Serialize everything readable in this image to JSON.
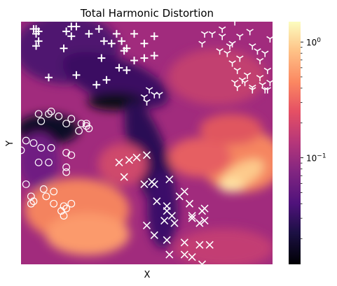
{
  "chart_data": {
    "type": "heatmap",
    "title": "Total Harmonic Distortion",
    "xlabel": "X",
    "ylabel": "Y",
    "colormap": "magma",
    "colorbar": {
      "scale": "log",
      "range": [
        0.012,
        1.5
      ],
      "major_ticks": [
        {
          "value": 1,
          "label": "10^0"
        },
        {
          "value": 0.1,
          "label": "10^-1"
        }
      ],
      "minor_ticks": [
        0.02,
        0.03,
        0.04,
        0.05,
        0.06,
        0.07,
        0.08,
        0.09,
        0.2,
        0.3,
        0.4,
        0.5,
        0.6,
        0.7,
        0.8,
        0.9
      ]
    },
    "grid": false,
    "legend": "none",
    "scatter_series": [
      {
        "marker": "plus",
        "color": "#ffffff",
        "points": [
          [
            0.06,
            0.03
          ],
          [
            0.07,
            0.04
          ],
          [
            0.06,
            0.1
          ],
          [
            0.18,
            0.04
          ],
          [
            0.2,
            0.02
          ],
          [
            0.27,
            0.05
          ],
          [
            0.31,
            0.03
          ],
          [
            0.33,
            0.08
          ],
          [
            0.36,
            0.09
          ],
          [
            0.38,
            0.05
          ],
          [
            0.4,
            0.08
          ],
          [
            0.41,
            0.12
          ],
          [
            0.42,
            0.11
          ],
          [
            0.45,
            0.05
          ],
          [
            0.49,
            0.09
          ],
          [
            0.49,
            0.15
          ],
          [
            0.53,
            0.14
          ],
          [
            0.17,
            0.11
          ],
          [
            0.2,
            0.06
          ],
          [
            0.22,
            0.02
          ],
          [
            0.32,
            0.15
          ],
          [
            0.11,
            0.23
          ],
          [
            0.22,
            0.22
          ],
          [
            0.3,
            0.26
          ],
          [
            0.34,
            0.24
          ],
          [
            0.39,
            0.19
          ],
          [
            0.53,
            0.06
          ],
          [
            0.06,
            0.05
          ],
          [
            0.07,
            0.08
          ],
          [
            0.05,
            0.03
          ],
          [
            0.42,
            0.2
          ],
          [
            0.45,
            0.16
          ]
        ]
      },
      {
        "marker": "tri_down",
        "color": "#ffffff",
        "points": [
          [
            0.76,
            0.05
          ],
          [
            0.8,
            0.06
          ],
          [
            0.79,
            0.12
          ],
          [
            0.82,
            0.13
          ],
          [
            0.84,
            0.09
          ],
          [
            0.87,
            0.06
          ],
          [
            0.91,
            0.04
          ],
          [
            0.92,
            0.1
          ],
          [
            0.87,
            0.15
          ],
          [
            0.86,
            0.2
          ],
          [
            0.85,
            0.25
          ],
          [
            0.89,
            0.25
          ],
          [
            0.94,
            0.12
          ],
          [
            0.97,
            0.13
          ],
          [
            0.99,
            0.07
          ],
          [
            0.98,
            0.2
          ],
          [
            0.96,
            0.26
          ],
          [
            0.92,
            0.28
          ],
          [
            0.97,
            0.28
          ],
          [
            0.86,
            0.27
          ],
          [
            0.88,
            0.24
          ],
          [
            0.95,
            0.16
          ],
          [
            0.8,
            0.03
          ],
          [
            0.85,
            0.0
          ],
          [
            0.83,
            0.1
          ],
          [
            0.9,
            0.22
          ],
          [
            0.92,
            0.27
          ],
          [
            0.51,
            0.28
          ],
          [
            0.49,
            0.31
          ],
          [
            0.5,
            0.33
          ],
          [
            0.53,
            0.3
          ],
          [
            0.55,
            0.3
          ],
          [
            0.84,
            0.17
          ],
          [
            0.99,
            0.25
          ],
          [
            0.95,
            0.23
          ],
          [
            0.98,
            0.28
          ],
          [
            0.73,
            0.05
          ],
          [
            0.72,
            0.09
          ]
        ]
      },
      {
        "marker": "circle_open",
        "color": "#ffffff",
        "points": [
          [
            0.11,
            0.38
          ],
          [
            0.12,
            0.37
          ],
          [
            0.07,
            0.38
          ],
          [
            0.08,
            0.41
          ],
          [
            0.15,
            0.39
          ],
          [
            0.18,
            0.42
          ],
          [
            0.2,
            0.4
          ],
          [
            0.24,
            0.42
          ],
          [
            0.26,
            0.43
          ],
          [
            0.27,
            0.44
          ],
          [
            0.26,
            0.42
          ],
          [
            0.23,
            0.45
          ],
          [
            0.02,
            0.49
          ],
          [
            0.05,
            0.5
          ],
          [
            0.08,
            0.52
          ],
          [
            0.12,
            0.52
          ],
          [
            0.18,
            0.54
          ],
          [
            0.0,
            0.53
          ],
          [
            0.07,
            0.58
          ],
          [
            0.11,
            0.58
          ],
          [
            0.18,
            0.6
          ],
          [
            0.18,
            0.62
          ],
          [
            0.2,
            0.55
          ],
          [
            0.02,
            0.67
          ],
          [
            0.09,
            0.69
          ],
          [
            0.13,
            0.7
          ],
          [
            0.04,
            0.72
          ],
          [
            0.05,
            0.74
          ],
          [
            0.1,
            0.72
          ],
          [
            0.13,
            0.75
          ],
          [
            0.17,
            0.76
          ],
          [
            0.16,
            0.78
          ],
          [
            0.18,
            0.77
          ],
          [
            0.2,
            0.75
          ],
          [
            0.17,
            0.8
          ],
          [
            0.04,
            0.75
          ]
        ]
      },
      {
        "marker": "x",
        "color": "#ffffff",
        "points": [
          [
            0.43,
            0.57
          ],
          [
            0.46,
            0.56
          ],
          [
            0.5,
            0.55
          ],
          [
            0.39,
            0.58
          ],
          [
            0.41,
            0.64
          ],
          [
            0.49,
            0.67
          ],
          [
            0.52,
            0.66
          ],
          [
            0.53,
            0.67
          ],
          [
            0.59,
            0.65
          ],
          [
            0.65,
            0.7
          ],
          [
            0.54,
            0.74
          ],
          [
            0.58,
            0.76
          ],
          [
            0.58,
            0.78
          ],
          [
            0.63,
            0.72
          ],
          [
            0.67,
            0.75
          ],
          [
            0.73,
            0.77
          ],
          [
            0.72,
            0.78
          ],
          [
            0.6,
            0.8
          ],
          [
            0.57,
            0.82
          ],
          [
            0.68,
            0.81
          ],
          [
            0.68,
            0.8
          ],
          [
            0.71,
            0.83
          ],
          [
            0.61,
            0.83
          ],
          [
            0.5,
            0.84
          ],
          [
            0.53,
            0.88
          ],
          [
            0.58,
            0.9
          ],
          [
            0.65,
            0.91
          ],
          [
            0.71,
            0.92
          ],
          [
            0.75,
            0.92
          ],
          [
            0.59,
            0.96
          ],
          [
            0.65,
            0.96
          ],
          [
            0.68,
            0.97
          ],
          [
            0.72,
            1.0
          ],
          [
            0.73,
            0.82
          ]
        ]
      }
    ],
    "field_description": "smooth 2D field; dark band from upper-left to lower-center, bright orange/yellow region right-center, magenta elsewhere"
  }
}
